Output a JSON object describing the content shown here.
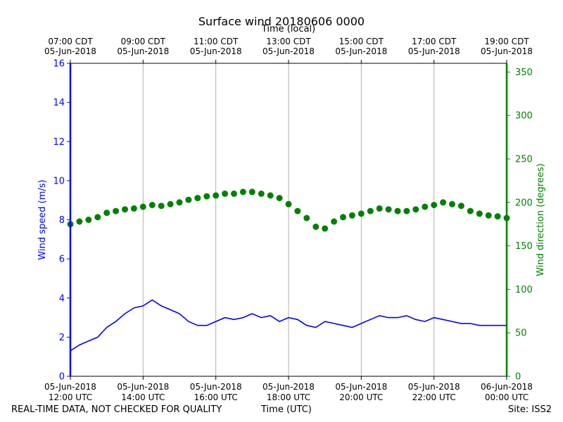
{
  "chart_data": {
    "type": "line",
    "title": "Surface wind 20180606 0000",
    "top_axis_label": "Time (local)",
    "bottom_axis_label": "Time (UTC)",
    "left_axis": {
      "label": "Wind speed (m/s)",
      "ylim": [
        0,
        16
      ],
      "ticks": [
        0,
        2,
        4,
        6,
        8,
        10,
        12,
        14,
        16
      ],
      "color": "#0000ff"
    },
    "right_axis": {
      "label": "Wind direction (degrees)",
      "ylim": [
        0,
        360
      ],
      "ticks": [
        0,
        50,
        100,
        150,
        200,
        250,
        300,
        350
      ],
      "color": "#008000"
    },
    "x_range_hours": [
      12,
      24
    ],
    "grid": "vertical",
    "bottom_ticks": [
      {
        "hour": 12,
        "line1": "05-Jun-2018",
        "line2": "12:00 UTC"
      },
      {
        "hour": 14,
        "line1": "05-Jun-2018",
        "line2": "14:00 UTC"
      },
      {
        "hour": 16,
        "line1": "05-Jun-2018",
        "line2": "16:00 UTC"
      },
      {
        "hour": 18,
        "line1": "05-Jun-2018",
        "line2": "18:00 UTC"
      },
      {
        "hour": 20,
        "line1": "05-Jun-2018",
        "line2": "20:00 UTC"
      },
      {
        "hour": 22,
        "line1": "05-Jun-2018",
        "line2": "22:00 UTC"
      },
      {
        "hour": 24,
        "line1": "06-Jun-2018",
        "line2": "00:00 UTC"
      }
    ],
    "top_ticks": [
      {
        "hour": 12,
        "line1": "07:00 CDT",
        "line2": "05-Jun-2018"
      },
      {
        "hour": 14,
        "line1": "09:00 CDT",
        "line2": "05-Jun-2018"
      },
      {
        "hour": 16,
        "line1": "11:00 CDT",
        "line2": "05-Jun-2018"
      },
      {
        "hour": 18,
        "line1": "13:00 CDT",
        "line2": "05-Jun-2018"
      },
      {
        "hour": 20,
        "line1": "15:00 CDT",
        "line2": "05-Jun-2018"
      },
      {
        "hour": 22,
        "line1": "17:00 CDT",
        "line2": "05-Jun-2018"
      },
      {
        "hour": 24,
        "line1": "19:00 CDT",
        "line2": "05-Jun-2018"
      }
    ],
    "series": [
      {
        "name": "Wind speed",
        "axis": "left",
        "style": "line",
        "color": "#0000ff",
        "x": [
          12.0,
          12.25,
          12.5,
          12.75,
          13.0,
          13.25,
          13.5,
          13.75,
          14.0,
          14.25,
          14.5,
          14.75,
          15.0,
          15.25,
          15.5,
          15.75,
          16.0,
          16.25,
          16.5,
          16.75,
          17.0,
          17.25,
          17.5,
          17.75,
          18.0,
          18.25,
          18.5,
          18.75,
          19.0,
          19.25,
          19.5,
          19.75,
          20.0,
          20.25,
          20.5,
          20.75,
          21.0,
          21.25,
          21.5,
          21.75,
          22.0,
          22.25,
          22.5,
          22.75,
          23.0,
          23.25,
          23.5,
          23.75,
          24.0
        ],
        "values": [
          1.3,
          1.6,
          1.8,
          2.0,
          2.5,
          2.8,
          3.2,
          3.5,
          3.6,
          3.9,
          3.6,
          3.4,
          3.2,
          2.8,
          2.6,
          2.6,
          2.8,
          3.0,
          2.9,
          3.0,
          3.2,
          3.0,
          3.1,
          2.8,
          3.0,
          2.9,
          2.6,
          2.5,
          2.8,
          2.7,
          2.6,
          2.5,
          2.7,
          2.9,
          3.1,
          3.0,
          3.0,
          3.1,
          2.9,
          2.8,
          3.0,
          2.9,
          2.8,
          2.7,
          2.7,
          2.6,
          2.6,
          2.6,
          2.6
        ]
      },
      {
        "name": "Wind direction",
        "axis": "right",
        "style": "scatter",
        "color": "#008000",
        "x": [
          12.0,
          12.25,
          12.5,
          12.75,
          13.0,
          13.25,
          13.5,
          13.75,
          14.0,
          14.25,
          14.5,
          14.75,
          15.0,
          15.25,
          15.5,
          15.75,
          16.0,
          16.25,
          16.5,
          16.75,
          17.0,
          17.25,
          17.5,
          17.75,
          18.0,
          18.25,
          18.5,
          18.75,
          19.0,
          19.25,
          19.5,
          19.75,
          20.0,
          20.25,
          20.5,
          20.75,
          21.0,
          21.25,
          21.5,
          21.75,
          22.0,
          22.25,
          22.5,
          22.75,
          23.0,
          23.25,
          23.5,
          23.75,
          24.0
        ],
        "values": [
          175,
          178,
          180,
          183,
          188,
          190,
          192,
          193,
          195,
          197,
          196,
          198,
          200,
          203,
          205,
          207,
          208,
          210,
          210,
          212,
          212,
          210,
          208,
          205,
          198,
          190,
          182,
          172,
          170,
          178,
          183,
          185,
          187,
          190,
          193,
          192,
          190,
          190,
          192,
          195,
          197,
          200,
          198,
          196,
          190,
          187,
          185,
          184,
          182
        ]
      }
    ]
  },
  "footer": {
    "disclaimer": "REAL-TIME DATA, NOT CHECKED FOR QUALITY",
    "time_label": "Time (UTC)",
    "site": "Site: ISS2"
  }
}
